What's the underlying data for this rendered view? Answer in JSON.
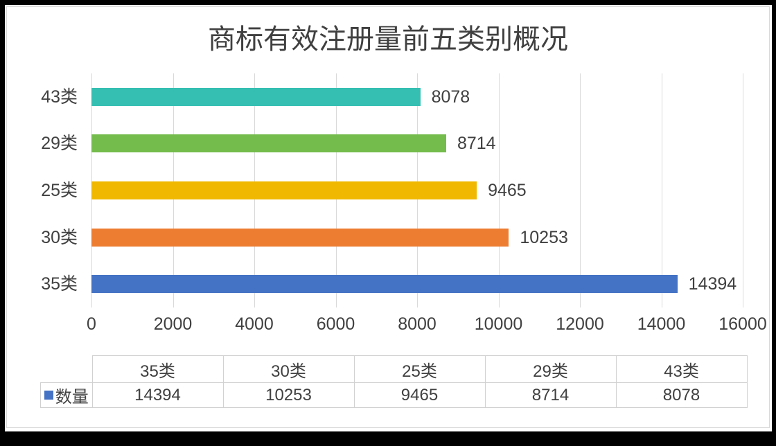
{
  "window": {
    "frame_color": "#000000",
    "page_color": "#ffffff"
  },
  "chart_data": {
    "type": "bar",
    "orientation": "horizontal",
    "title": "商标有效注册量前五类别概况",
    "categories": [
      "43类",
      "29类",
      "25类",
      "30类",
      "35类"
    ],
    "series": [
      {
        "name": "数量",
        "values": [
          8078,
          8714,
          9465,
          10253,
          14394
        ]
      }
    ],
    "data_labels": [
      "8078",
      "8714",
      "9465",
      "10253",
      "14394"
    ],
    "bar_colors": [
      "#35bfb2",
      "#74bc4b",
      "#f0b800",
      "#ed7d31",
      "#4472c4"
    ],
    "xlim": [
      0,
      16000
    ],
    "xticks": [
      "0",
      "2000",
      "4000",
      "6000",
      "8000",
      "10000",
      "12000",
      "14000",
      "16000"
    ],
    "grid": true,
    "gridline_color": "#d9d9d9",
    "text_color": "#404040",
    "data_table": {
      "columns": [
        "35类",
        "30类",
        "25类",
        "29类",
        "43类"
      ],
      "rows": [
        {
          "label": "数量",
          "marker_color": "#4472c4",
          "values": [
            "14394",
            "10253",
            "9465",
            "8714",
            "8078"
          ]
        }
      ],
      "border_color": "#d1d1d1"
    }
  }
}
